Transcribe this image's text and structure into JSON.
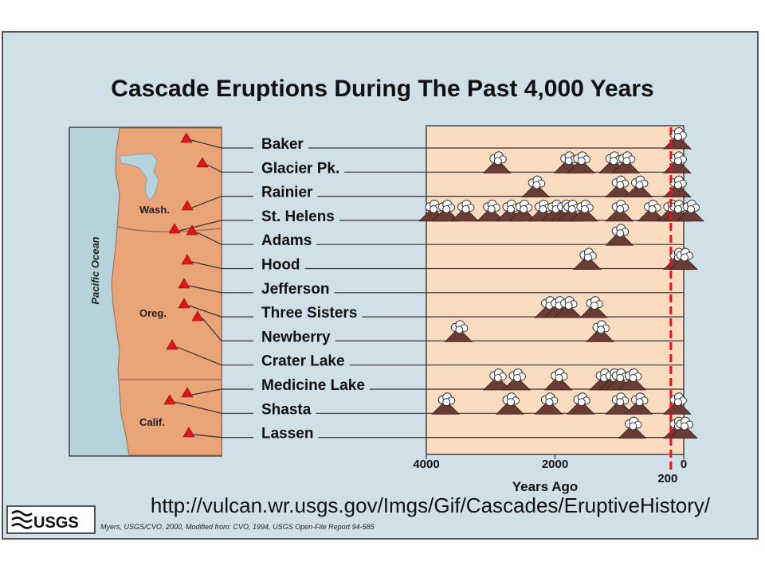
{
  "chart_data": {
    "type": "scatter",
    "title": "Cascade Eruptions During The Past 4,000 Years",
    "xlabel": "Years Ago",
    "x_ticks": [
      {
        "value": 4000,
        "label": "4000"
      },
      {
        "value": 2000,
        "label": "2000"
      },
      {
        "value": 200,
        "label": "200"
      },
      {
        "value": 0,
        "label": "0"
      }
    ],
    "xlim": [
      4000,
      0
    ],
    "reference_line": {
      "value": 200,
      "color": "#e1141b",
      "style": "dashed"
    },
    "volcanoes": [
      {
        "name": "Baker",
        "eruptions": [
          100
        ]
      },
      {
        "name": "Glacier Pk.",
        "eruptions": [
          2900,
          1800,
          1600,
          1100,
          900,
          100
        ]
      },
      {
        "name": "Rainier",
        "eruptions": [
          2300,
          1000,
          700,
          100
        ]
      },
      {
        "name": "St. Helens",
        "eruptions": [
          3900,
          3700,
          3400,
          3000,
          2700,
          2500,
          2200,
          2000,
          1850,
          1750,
          1550,
          1000,
          500,
          200,
          100,
          -100
        ]
      },
      {
        "name": "Adams",
        "eruptions": [
          1000
        ]
      },
      {
        "name": "Hood",
        "eruptions": [
          1500,
          100,
          0
        ]
      },
      {
        "name": "Jefferson",
        "eruptions": []
      },
      {
        "name": "Three Sisters",
        "eruptions": [
          2100,
          1950,
          1800,
          1400
        ]
      },
      {
        "name": "Newberry",
        "eruptions": [
          3500,
          1300
        ]
      },
      {
        "name": "Crater Lake",
        "eruptions": []
      },
      {
        "name": "Medicine Lake",
        "eruptions": [
          2900,
          2600,
          1950,
          1250,
          1100,
          1000,
          800
        ]
      },
      {
        "name": "Shasta",
        "eruptions": [
          3700,
          2700,
          2100,
          1600,
          1000,
          700,
          100
        ]
      },
      {
        "name": "Lassen",
        "eruptions": [
          800,
          100,
          0
        ]
      }
    ]
  },
  "map": {
    "ocean_label": "Pacific Ocean",
    "state_labels": [
      "Wash.",
      "Oreg.",
      "Calif."
    ]
  },
  "colors": {
    "frame_bg": "#cfe0e8",
    "plot_bg": "#fbdcc0",
    "land": "#e9a478",
    "water": "#b6d3db",
    "volcano_marker": "#e1141b",
    "eruption_body": "#6b3b35",
    "ash_cloud": "#ffffff"
  },
  "url_text": "http://vulcan.wr.usgs.gov/Imgs/Gif/Cascades/EruptiveHistory/",
  "logo_text": "USGS",
  "credit": "Myers, USGS/CVO, 2000, Modified from: CVO, 1994, USGS Open-File Report 94-585"
}
